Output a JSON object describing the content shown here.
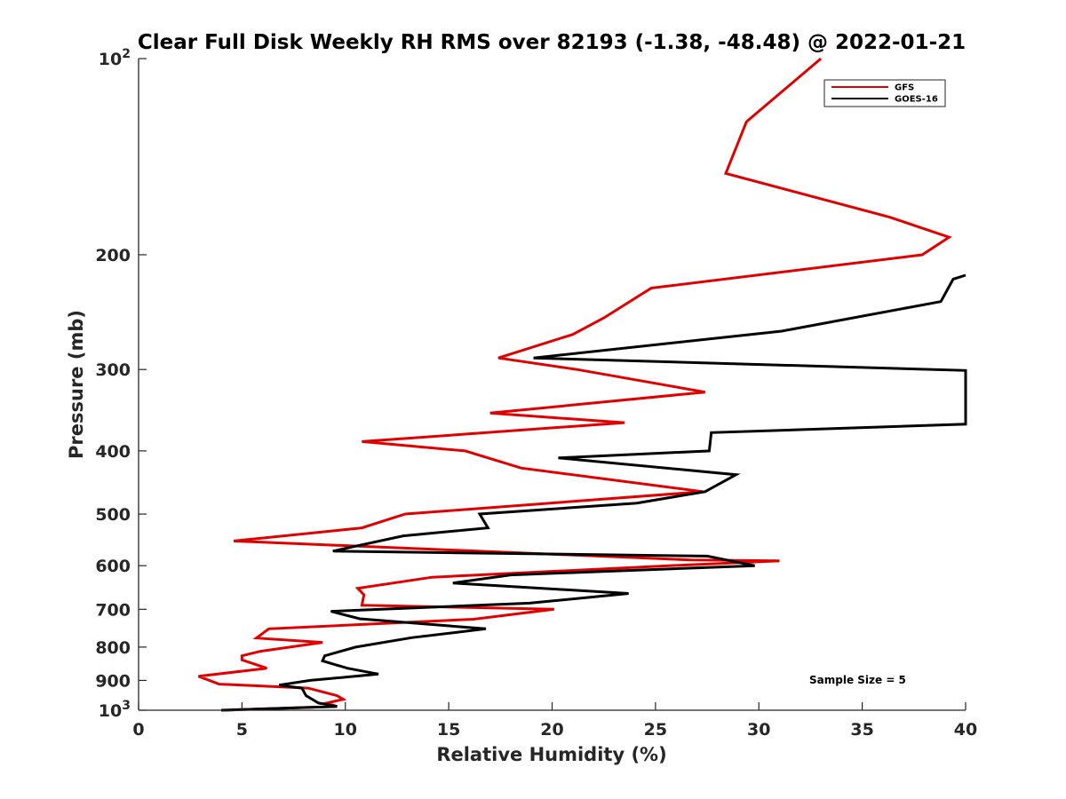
{
  "chart_data": {
    "type": "line",
    "title": "Clear Full Disk Weekly RH RMS over 82193 (-1.38, -48.48) @ 2022-01-21",
    "xlabel": "Relative Humidity (%)",
    "ylabel": "Pressure (mb)",
    "xlim": [
      0,
      40
    ],
    "ylim": [
      100,
      1000
    ],
    "y_scale": "log",
    "y_reversed": true,
    "grid": false,
    "x_ticks": [
      0,
      5,
      10,
      15,
      20,
      25,
      30,
      35,
      40
    ],
    "y_ticks": [
      {
        "value": 100,
        "base": "10",
        "exp": "2"
      },
      {
        "value": 200,
        "label": "200"
      },
      {
        "value": 300,
        "label": "300"
      },
      {
        "value": 400,
        "label": "400"
      },
      {
        "value": 500,
        "label": "500"
      },
      {
        "value": 600,
        "label": "600"
      },
      {
        "value": 700,
        "label": "700"
      },
      {
        "value": 800,
        "label": "800"
      },
      {
        "value": 900,
        "label": "900"
      },
      {
        "value": 1000,
        "base": "10",
        "exp": "3"
      }
    ],
    "legend_position": "top-right",
    "annotation": "Sample Size = 5",
    "series": [
      {
        "name": "GFS",
        "color": "#e00000",
        "points": [
          [
            33.0,
            100
          ],
          [
            29.4,
            125
          ],
          [
            28.4,
            150
          ],
          [
            36.3,
            175
          ],
          [
            39.2,
            188
          ],
          [
            37.9,
            200
          ],
          [
            24.8,
            225
          ],
          [
            22.5,
            250
          ],
          [
            21.0,
            265
          ],
          [
            17.4,
            288
          ],
          [
            21.2,
            300
          ],
          [
            27.4,
            325
          ],
          [
            17.0,
            350
          ],
          [
            23.5,
            362
          ],
          [
            10.8,
            387
          ],
          [
            15.8,
            400
          ],
          [
            18.5,
            425
          ],
          [
            27.3,
            462
          ],
          [
            12.9,
            500
          ],
          [
            10.8,
            525
          ],
          [
            4.6,
            550
          ],
          [
            26.7,
            588
          ],
          [
            31.0,
            590
          ],
          [
            25.2,
            601
          ],
          [
            14.2,
            625
          ],
          [
            10.6,
            650
          ],
          [
            10.9,
            665
          ],
          [
            10.8,
            690
          ],
          [
            20.1,
            700
          ],
          [
            16.2,
            725
          ],
          [
            6.3,
            750
          ],
          [
            5.7,
            775
          ],
          [
            8.9,
            787
          ],
          [
            5.9,
            812
          ],
          [
            5.0,
            825
          ],
          [
            5.0,
            837
          ],
          [
            6.2,
            862
          ],
          [
            2.9,
            887
          ],
          [
            3.9,
            912
          ],
          [
            8.2,
            925
          ],
          [
            9.6,
            950
          ],
          [
            9.9,
            962
          ],
          [
            9.1,
            975
          ],
          [
            9.6,
            987
          ],
          [
            4.0,
            1000
          ]
        ]
      },
      {
        "name": "GOES-16",
        "color": "#000000",
        "points": [
          [
            40.0,
            215
          ],
          [
            39.4,
            218
          ],
          [
            38.8,
            236
          ],
          [
            31.1,
            262
          ],
          [
            19.1,
            288
          ],
          [
            40.0,
            301
          ],
          [
            40.0,
            364
          ],
          [
            27.7,
            375
          ],
          [
            27.6,
            400
          ],
          [
            20.3,
            410
          ],
          [
            28.9,
            435
          ],
          [
            27.4,
            462
          ],
          [
            24.1,
            481
          ],
          [
            16.5,
            500
          ],
          [
            16.9,
            525
          ],
          [
            12.8,
            540
          ],
          [
            10.5,
            560
          ],
          [
            9.4,
            570
          ],
          [
            27.5,
            580
          ],
          [
            29.8,
            600
          ],
          [
            18.0,
            620
          ],
          [
            15.2,
            638
          ],
          [
            23.7,
            662
          ],
          [
            18.9,
            685
          ],
          [
            9.3,
            705
          ],
          [
            10.7,
            724
          ],
          [
            16.8,
            750
          ],
          [
            13.2,
            774
          ],
          [
            10.5,
            800
          ],
          [
            9.0,
            825
          ],
          [
            8.9,
            840
          ],
          [
            10.1,
            862
          ],
          [
            11.6,
            880
          ],
          [
            8.3,
            900
          ],
          [
            6.8,
            915
          ],
          [
            7.9,
            925
          ],
          [
            8.1,
            950
          ],
          [
            8.7,
            975
          ],
          [
            9.6,
            987
          ],
          [
            4.0,
            1000
          ]
        ]
      }
    ]
  }
}
